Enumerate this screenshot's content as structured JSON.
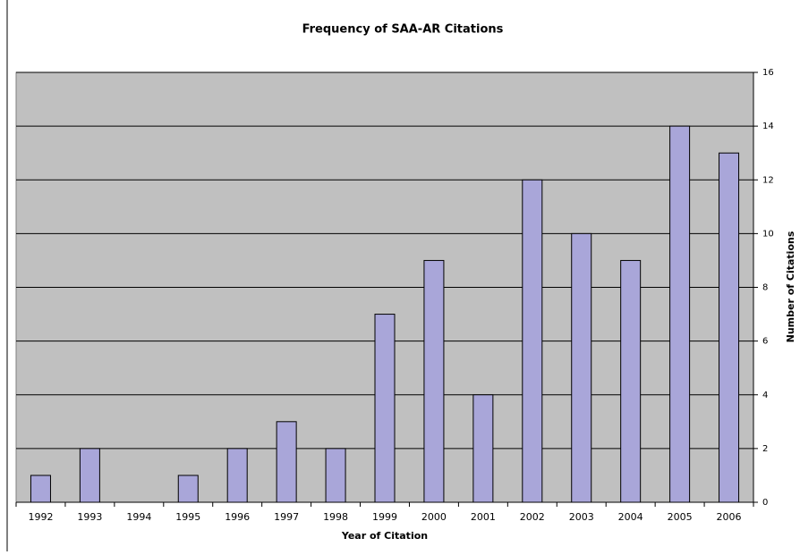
{
  "chart_data": {
    "type": "bar",
    "title": "Frequency of SAA-AR Citations",
    "x_label": "Year of Citation",
    "y_label": "Number of Citations",
    "categories": [
      "1992",
      "1993",
      "1994",
      "1995",
      "1996",
      "1997",
      "1998",
      "1999",
      "2000",
      "2001",
      "2002",
      "2003",
      "2004",
      "2005",
      "2006"
    ],
    "values": [
      1,
      2,
      0,
      1,
      2,
      3,
      2,
      7,
      9,
      4,
      12,
      10,
      9,
      14,
      13
    ],
    "color": "#a9a6d9",
    "ylim": [
      0,
      16
    ],
    "yticks": [
      0,
      2,
      4,
      6,
      8,
      10,
      12,
      14,
      16
    ],
    "grid": true,
    "y_axis_side": "right"
  }
}
